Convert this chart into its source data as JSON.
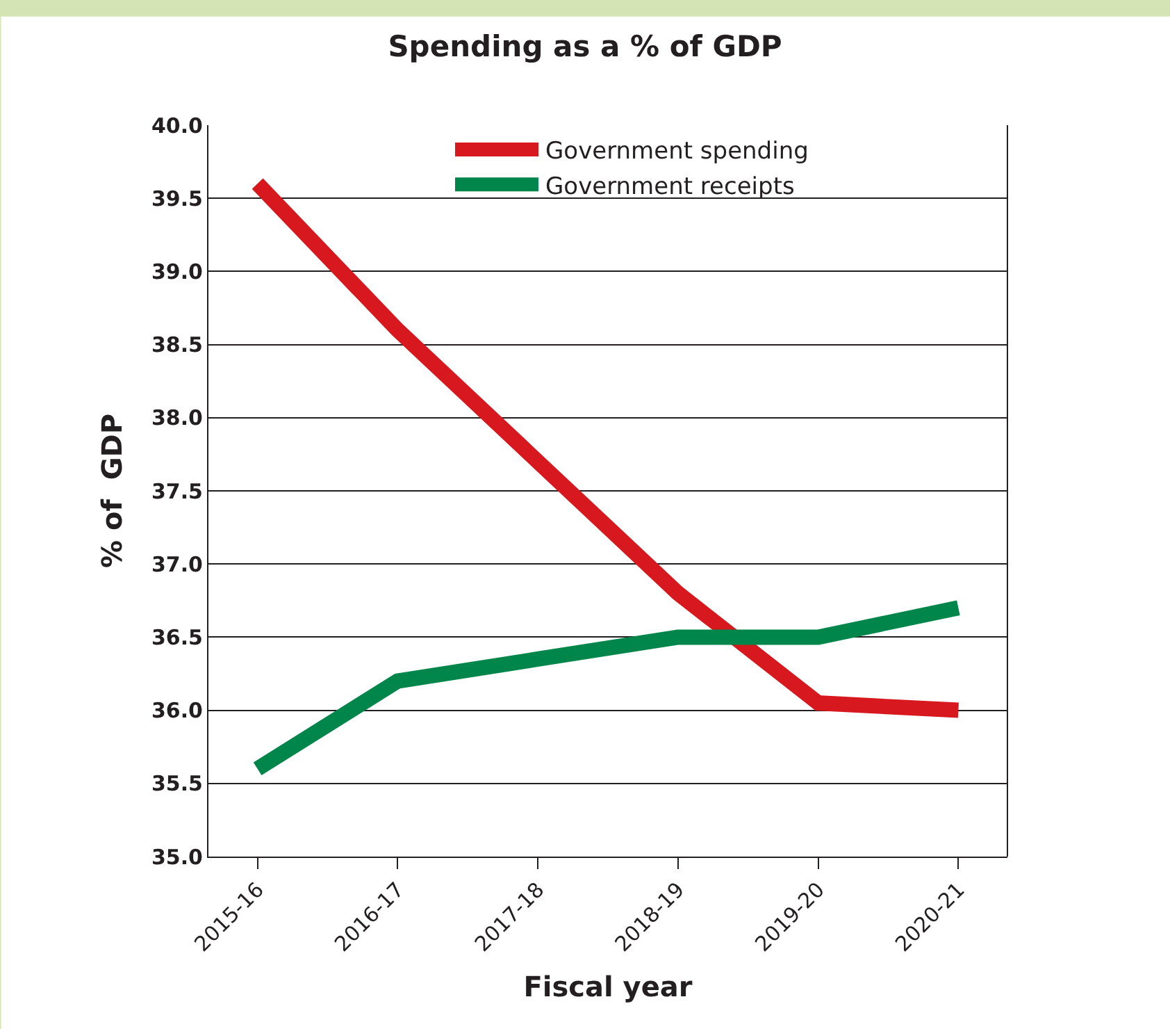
{
  "chart_data": {
    "type": "line",
    "title": "Spending as a % of GDP",
    "xlabel": "Fiscal year",
    "ylabel": "% of  GDP",
    "categories": [
      "2015-16",
      "2016-17",
      "2017-18",
      "2018-19",
      "2019-20",
      "2020-21"
    ],
    "series": [
      {
        "name": "Government spending",
        "color": "#d7191f",
        "values": [
          39.6,
          38.6,
          37.7,
          36.8,
          36.05,
          36.0
        ]
      },
      {
        "name": "Government receipts",
        "color": "#00854a",
        "values": [
          35.6,
          36.2,
          36.35,
          36.5,
          36.5,
          36.7
        ]
      }
    ],
    "ylim": [
      35.0,
      40.0
    ],
    "yticks": [
      {
        "value": 35,
        "label": "35.0"
      },
      {
        "value": 35.5,
        "label": "35.5"
      },
      {
        "value": 36,
        "label": "36.0"
      },
      {
        "value": 36.5,
        "label": "36.5"
      },
      {
        "value": 37,
        "label": "37.0"
      },
      {
        "value": 37.5,
        "label": "37.5"
      },
      {
        "value": 38,
        "label": "38.0"
      },
      {
        "value": 38.5,
        "label": "38.5"
      },
      {
        "value": 39,
        "label": "39.0"
      },
      {
        "value": 39.5,
        "label": "39.5"
      },
      {
        "value": 40,
        "label": "40.0"
      }
    ],
    "grid": "y",
    "legend": "top right",
    "marker": "none",
    "line_style": "solid"
  }
}
